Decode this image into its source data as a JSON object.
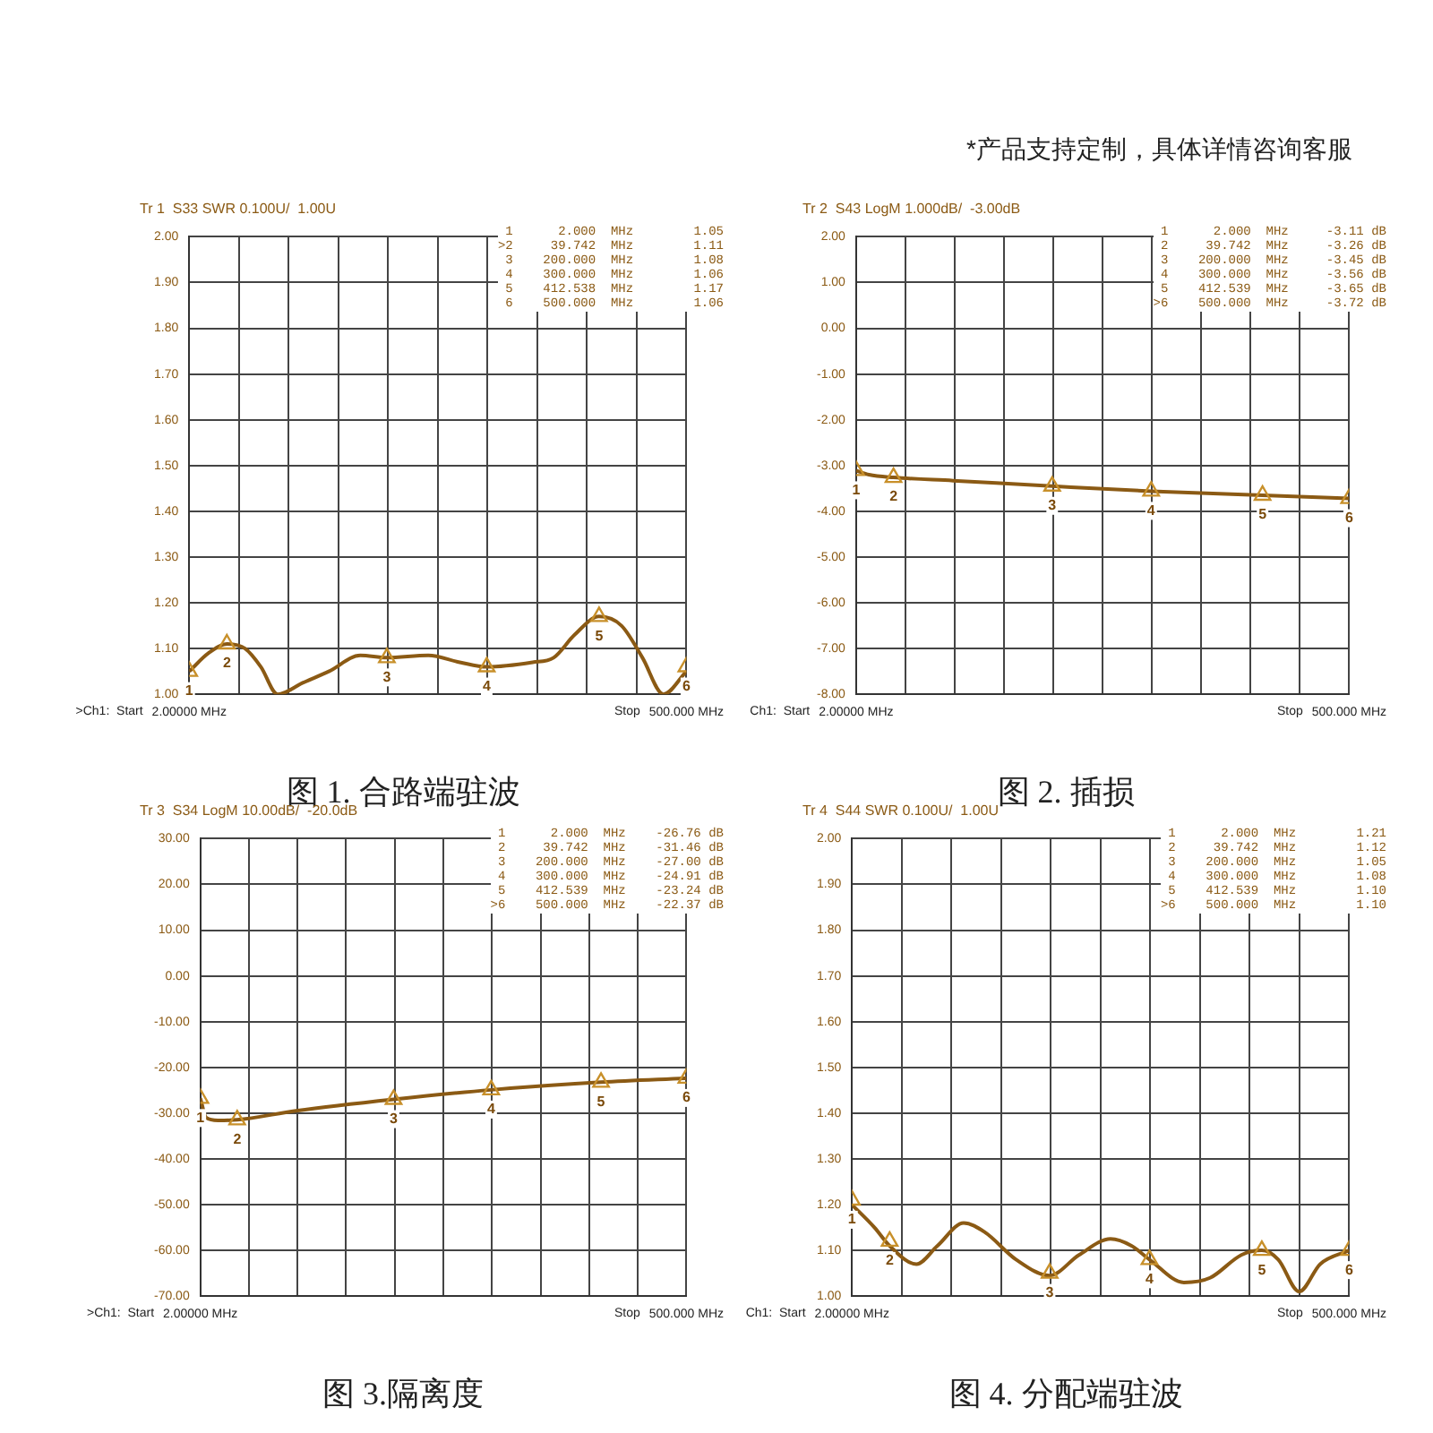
{
  "chart_data": [
    {
      "type": "line",
      "title": "图 1. 合路端驻波",
      "subtitle": "Tr 1  S33 SWR 0.100U/  1.00U",
      "xlim": [
        2,
        500
      ],
      "xticks": [
        {
          "value": 2,
          "label": "2.00000 MHz"
        },
        {
          "value": 51.8,
          "label": null
        },
        {
          "value": 101.6,
          "label": null
        },
        {
          "value": 151.4,
          "label": null
        },
        {
          "value": 201.2,
          "label": null
        },
        {
          "value": 251,
          "label": null
        },
        {
          "value": 300.8,
          "label": null
        },
        {
          "value": 350.6,
          "label": null
        },
        {
          "value": 400.4,
          "label": null
        },
        {
          "value": 450.2,
          "label": null
        },
        {
          "value": 500,
          "label": "500.000 MHz"
        }
      ],
      "ylim": [
        1,
        2
      ],
      "yticks": [
        {
          "value": 1,
          "label": "1.00"
        },
        {
          "value": 1.1,
          "label": "1.10"
        },
        {
          "value": 1.2,
          "label": "1.20"
        },
        {
          "value": 1.3,
          "label": "1.30"
        },
        {
          "value": 1.4,
          "label": "1.40"
        },
        {
          "value": 1.5,
          "label": "1.50"
        },
        {
          "value": 1.6,
          "label": "1.60"
        },
        {
          "value": 1.7,
          "label": "1.70"
        },
        {
          "value": 1.8,
          "label": "1.80"
        },
        {
          "value": 1.9,
          "label": "1.90"
        },
        {
          "value": 2,
          "label": "2.00"
        }
      ],
      "grid": true,
      "legend": false,
      "series": [
        {
          "type": "line",
          "color": "#8b5a14",
          "x": [
            2,
            21.4,
            39.7,
            58,
            73.8,
            90.6,
            115.7,
            141.9,
            173.4,
            200,
            241.5,
            273,
            300,
            346,
            367,
            388,
            412.5,
            435,
            456,
            477,
            500
          ],
          "values": [
            1.05,
            1.09,
            1.11,
            1.1,
            1.06,
            1.0,
            1.025,
            1.05,
            1.085,
            1.08,
            1.085,
            1.07,
            1.06,
            1.07,
            1.08,
            1.13,
            1.17,
            1.15,
            1.08,
            1.0,
            1.05
          ]
        },
        {
          "type": "scatter",
          "marker": "triangle",
          "color": "#c8902a",
          "x": [
            2,
            39.742,
            200,
            300,
            412.539,
            500
          ],
          "values": [
            1.05,
            1.11,
            1.08,
            1.06,
            1.17,
            1.06
          ]
        }
      ],
      "annotations": [
        ">Ch1:  Start",
        "Stop",
        "1      2.000  MHz        1.05",
        ">2     39.742  MHz        1.11",
        "3    200.000  MHz        1.08",
        "4    300.000  MHz        1.06",
        "5    412.538  MHz        1.17",
        "6    500.000  MHz        1.06",
        {
          "text": "1",
          "x": 2,
          "y": 1.05
        },
        {
          "text": "2",
          "x": 39.742,
          "y": 1.11
        },
        {
          "text": "3",
          "x": 200,
          "y": 1.08
        },
        {
          "text": "4",
          "x": 300,
          "y": 1.06
        },
        {
          "text": "5",
          "x": 412.539,
          "y": 1.17
        },
        {
          "text": "6",
          "x": 500,
          "y": 1.06
        },
        "*产品支持定制，具体详情咨询客服"
      ]
    },
    {
      "type": "line",
      "title": "图 2.  插损",
      "subtitle": "Tr 2  S43 LogM 1.000dB/  -3.00dB",
      "xlim": [
        2,
        500
      ],
      "xticks": [
        {
          "value": 2,
          "label": "2.00000 MHz"
        },
        {
          "value": 51.8,
          "label": null
        },
        {
          "value": 101.6,
          "label": null
        },
        {
          "value": 151.4,
          "label": null
        },
        {
          "value": 201.2,
          "label": null
        },
        {
          "value": 251,
          "label": null
        },
        {
          "value": 300.8,
          "label": null
        },
        {
          "value": 350.6,
          "label": null
        },
        {
          "value": 400.4,
          "label": null
        },
        {
          "value": 450.2,
          "label": null
        },
        {
          "value": 500,
          "label": "500.000 MHz"
        }
      ],
      "ylim": [
        -8,
        2
      ],
      "yticks": [
        {
          "value": -8,
          "label": "-8.00"
        },
        {
          "value": -7,
          "label": "-7.00"
        },
        {
          "value": -6,
          "label": "-6.00"
        },
        {
          "value": -5,
          "label": "-5.00"
        },
        {
          "value": -4,
          "label": "-4.00"
        },
        {
          "value": -3,
          "label": "-3.00"
        },
        {
          "value": -2,
          "label": "-2.00"
        },
        {
          "value": -1,
          "label": "-1.00"
        },
        {
          "value": 0,
          "label": "0.00"
        },
        {
          "value": 1,
          "label": "1.00"
        },
        {
          "value": 2,
          "label": "2.00"
        }
      ],
      "grid": true,
      "legend": false,
      "series": [
        {
          "type": "line",
          "color": "#8b5a14",
          "x": [
            2,
            15,
            39.7,
            100,
            200,
            300,
            412.5,
            500
          ],
          "values": [
            -3.11,
            -3.2,
            -3.26,
            -3.33,
            -3.45,
            -3.56,
            -3.65,
            -3.72
          ]
        },
        {
          "type": "scatter",
          "marker": "triangle",
          "color": "#c8902a",
          "x": [
            2,
            39.742,
            200,
            300,
            412.539,
            500
          ],
          "values": [
            -3.11,
            -3.26,
            -3.45,
            -3.56,
            -3.65,
            -3.72
          ]
        }
      ],
      "annotations": [
        "Ch1:  Start",
        "Stop",
        "1      2.000  MHz     -3.11 dB",
        "2     39.742  MHz     -3.26 dB",
        "3    200.000  MHz     -3.45 dB",
        "4    300.000  MHz     -3.56 dB",
        "5    412.539  MHz     -3.65 dB",
        ">6    500.000  MHz     -3.72 dB",
        {
          "text": "1",
          "x": 2,
          "y": -3.11
        },
        {
          "text": "2",
          "x": 39.742,
          "y": -3.26
        },
        {
          "text": "3",
          "x": 200,
          "y": -3.45
        },
        {
          "text": "4",
          "x": 300,
          "y": -3.56
        },
        {
          "text": "5",
          "x": 412.539,
          "y": -3.65
        },
        {
          "text": "6",
          "x": 500,
          "y": -3.72
        }
      ]
    },
    {
      "type": "line",
      "title": "图 3.隔离度",
      "subtitle": "Tr 3  S34 LogM 10.00dB/  -20.0dB",
      "xlim": [
        2,
        500
      ],
      "xticks": [
        {
          "value": 2,
          "label": "2.00000 MHz"
        },
        {
          "value": 51.8,
          "label": null
        },
        {
          "value": 101.6,
          "label": null
        },
        {
          "value": 151.4,
          "label": null
        },
        {
          "value": 201.2,
          "label": null
        },
        {
          "value": 251,
          "label": null
        },
        {
          "value": 300.8,
          "label": null
        },
        {
          "value": 350.6,
          "label": null
        },
        {
          "value": 400.4,
          "label": null
        },
        {
          "value": 450.2,
          "label": null
        },
        {
          "value": 500,
          "label": "500.000 MHz"
        }
      ],
      "ylim": [
        -70,
        30
      ],
      "yticks": [
        {
          "value": -70,
          "label": "-70.00"
        },
        {
          "value": -60,
          "label": "-60.00"
        },
        {
          "value": -50,
          "label": "-50.00"
        },
        {
          "value": -40,
          "label": "-40.00"
        },
        {
          "value": -30,
          "label": "-30.00"
        },
        {
          "value": -20,
          "label": "-20.00"
        },
        {
          "value": -10,
          "label": "-10.00"
        },
        {
          "value": 0,
          "label": "0.00"
        },
        {
          "value": 10,
          "label": "10.00"
        },
        {
          "value": 20,
          "label": "20.00"
        },
        {
          "value": 30,
          "label": "30.00"
        }
      ],
      "grid": true,
      "legend": false,
      "series": [
        {
          "type": "line",
          "color": "#8b5a14",
          "x": [
            2,
            8,
            20,
            39.7,
            100,
            200,
            300,
            412.5,
            500
          ],
          "values": [
            -26.76,
            -31,
            -31.6,
            -31.46,
            -29.5,
            -27.0,
            -24.91,
            -23.24,
            -22.37
          ]
        },
        {
          "type": "scatter",
          "marker": "triangle",
          "color": "#c8902a",
          "x": [
            2,
            39.742,
            200,
            300,
            412.539,
            500
          ],
          "values": [
            -26.76,
            -31.46,
            -27.0,
            -24.91,
            -23.24,
            -22.37
          ]
        }
      ],
      "annotations": [
        ">Ch1:  Start",
        "Stop",
        "1      2.000  MHz    -26.76 dB",
        "2     39.742  MHz    -31.46 dB",
        "3    200.000  MHz    -27.00 dB",
        "4    300.000  MHz    -24.91 dB",
        "5    412.539  MHz    -23.24 dB",
        ">6    500.000  MHz    -22.37 dB",
        {
          "text": "1",
          "x": 2,
          "y": -26.76
        },
        {
          "text": "2",
          "x": 39.742,
          "y": -31.46
        },
        {
          "text": "3",
          "x": 200,
          "y": -27.0
        },
        {
          "text": "4",
          "x": 300,
          "y": -24.91
        },
        {
          "text": "5",
          "x": 412.539,
          "y": -23.24
        },
        {
          "text": "6",
          "x": 500,
          "y": -22.37
        }
      ]
    },
    {
      "type": "line",
      "title": "图 4.  分配端驻波",
      "subtitle": "Tr 4  S44 SWR 0.100U/  1.00U",
      "xlim": [
        2,
        500
      ],
      "xticks": [
        {
          "value": 2,
          "label": "2.00000 MHz"
        },
        {
          "value": 51.8,
          "label": null
        },
        {
          "value": 101.6,
          "label": null
        },
        {
          "value": 151.4,
          "label": null
        },
        {
          "value": 201.2,
          "label": null
        },
        {
          "value": 251,
          "label": null
        },
        {
          "value": 300.8,
          "label": null
        },
        {
          "value": 350.6,
          "label": null
        },
        {
          "value": 400.4,
          "label": null
        },
        {
          "value": 450.2,
          "label": null
        },
        {
          "value": 500,
          "label": "500.000 MHz"
        }
      ],
      "ylim": [
        1,
        2
      ],
      "yticks": [
        {
          "value": 1,
          "label": "1.00"
        },
        {
          "value": 1.1,
          "label": "1.10"
        },
        {
          "value": 1.2,
          "label": "1.20"
        },
        {
          "value": 1.3,
          "label": "1.30"
        },
        {
          "value": 1.4,
          "label": "1.40"
        },
        {
          "value": 1.5,
          "label": "1.50"
        },
        {
          "value": 1.6,
          "label": "1.60"
        },
        {
          "value": 1.7,
          "label": "1.70"
        },
        {
          "value": 1.8,
          "label": "1.80"
        },
        {
          "value": 1.9,
          "label": "1.90"
        },
        {
          "value": 2,
          "label": "2.00"
        }
      ],
      "grid": true,
      "legend": false,
      "series": [
        {
          "type": "line",
          "color": "#8b5a14",
          "x": [
            2,
            24.6,
            39.7,
            66.6,
            87.6,
            113.9,
            134.9,
            166.4,
            200,
            229.4,
            261,
            282,
            300,
            334.5,
            360.7,
            392,
            412.5,
            429,
            450,
            471,
            500
          ],
          "values": [
            1.2,
            1.15,
            1.11,
            1.07,
            1.11,
            1.16,
            1.14,
            1.08,
            1.045,
            1.09,
            1.125,
            1.11,
            1.08,
            1.03,
            1.04,
            1.09,
            1.1,
            1.08,
            1.01,
            1.07,
            1.1
          ]
        },
        {
          "type": "scatter",
          "marker": "triangle",
          "color": "#c8902a",
          "x": [
            2,
            39.742,
            200,
            300,
            412.539,
            500
          ],
          "values": [
            1.21,
            1.12,
            1.05,
            1.08,
            1.1,
            1.1
          ]
        }
      ],
      "annotations": [
        "Ch1:  Start",
        "Stop",
        "1      2.000  MHz        1.21",
        "2     39.742  MHz        1.12",
        "3    200.000  MHz        1.05",
        "4    300.000  MHz        1.08",
        "5    412.539  MHz        1.10",
        ">6    500.000  MHz        1.10",
        {
          "text": "1",
          "x": 2,
          "y": 1.21
        },
        {
          "text": "2",
          "x": 39.742,
          "y": 1.12
        },
        {
          "text": "3",
          "x": 200,
          "y": 1.05
        },
        {
          "text": "4",
          "x": 300,
          "y": 1.08
        },
        {
          "text": "5",
          "x": 412.539,
          "y": 1.1
        },
        {
          "text": "6",
          "x": 500,
          "y": 1.1
        }
      ]
    }
  ]
}
